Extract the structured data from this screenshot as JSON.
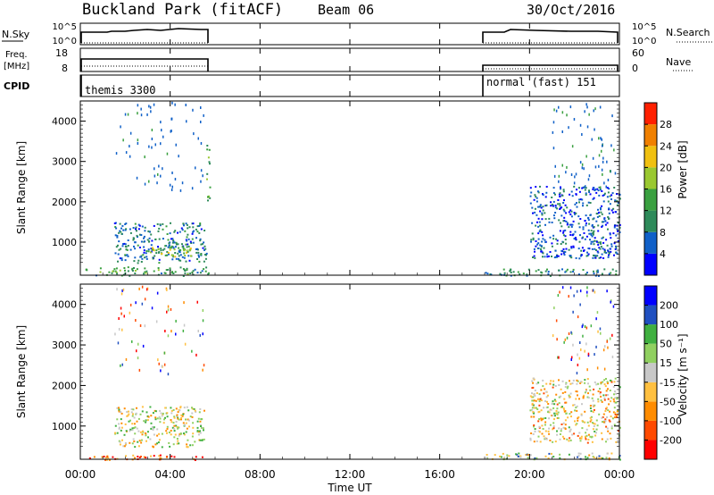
{
  "header": {
    "station": "Buckland Park (fitACF)",
    "beam": "Beam 06",
    "date": "30/Oct/2016"
  },
  "noise_panel": {
    "left_label": "N.Sky",
    "left_ticks": [
      "10^5",
      "10^0"
    ],
    "right_label": "N.Search",
    "right_ticks": [
      "10^5",
      "10^0"
    ]
  },
  "freq_panel": {
    "left_label_1": "Freq.",
    "left_label_2": "[MHz]",
    "left_ticks": [
      "18",
      "8"
    ],
    "right_label": "Nave",
    "right_ticks": [
      "60",
      "0"
    ]
  },
  "cpid_panel": {
    "label": "CPID",
    "mode_1": "themis 3300",
    "mode_2": "normal (fast) 151"
  },
  "power_panel": {
    "ylabel": "Slant Range [km]",
    "yticks": [
      "1000",
      "2000",
      "3000",
      "4000"
    ],
    "colorbar_label": "Power [dB]",
    "colorbar_ticks": [
      "4",
      "8",
      "12",
      "16",
      "20",
      "24",
      "28"
    ],
    "colors": [
      "#0000ff",
      "#1060c8",
      "#2e8a5a",
      "#3aa040",
      "#9ac830",
      "#f0c010",
      "#f08000",
      "#ff2000"
    ]
  },
  "velocity_panel": {
    "ylabel": "Slant Range [km]",
    "yticks": [
      "1000",
      "2000",
      "3000",
      "4000"
    ],
    "colorbar_label": "Velocity [m s⁻¹]",
    "colorbar_ticks": [
      "-200",
      "-100",
      "-50",
      "-15",
      "15",
      "50",
      "100",
      "200"
    ],
    "colors": [
      "#ff0000",
      "#ff4a00",
      "#ff8c00",
      "#ffc040",
      "#c8c8c8",
      "#90d060",
      "#40b040",
      "#2050c0",
      "#0000ff"
    ]
  },
  "x_axis": {
    "label": "Time UT",
    "ticks": [
      "00:00",
      "04:00",
      "08:00",
      "12:00",
      "16:00",
      "20:00",
      "00:00"
    ]
  },
  "chart_data": {
    "type": "heatmap",
    "x_range_hours": [
      0,
      24
    ],
    "y_range_km": [
      180,
      4500
    ],
    "data_gap_hours": [
      5.75,
      18.0
    ],
    "power_regions": [
      {
        "t": [
          0.2,
          5.7
        ],
        "range": [
          180,
          400
        ],
        "power_dB": 12
      },
      {
        "t": [
          1.5,
          5.6
        ],
        "range": [
          500,
          1500
        ],
        "power_dB": 8
      },
      {
        "t": [
          3.0,
          5.0
        ],
        "range": [
          650,
          950
        ],
        "power_dB": 18
      },
      {
        "t": [
          5.6,
          5.75
        ],
        "range": [
          2000,
          3500
        ],
        "power_dB": 14
      },
      {
        "t": [
          18.0,
          24.0
        ],
        "range": [
          180,
          350
        ],
        "power_dB": 10
      },
      {
        "t": [
          20.0,
          24.0
        ],
        "range": [
          600,
          2400
        ],
        "power_dB": 6
      }
    ],
    "velocity_regions": [
      {
        "t": [
          0.2,
          5.7
        ],
        "range": [
          180,
          300
        ],
        "velocity": -150
      },
      {
        "t": [
          1.5,
          5.5
        ],
        "range": [
          500,
          1500
        ],
        "velocity": 0
      },
      {
        "t": [
          18.0,
          24.0
        ],
        "range": [
          180,
          350
        ],
        "velocity": 30
      },
      {
        "t": [
          20.0,
          24.0
        ],
        "range": [
          600,
          2200
        ],
        "velocity": -30
      }
    ]
  }
}
